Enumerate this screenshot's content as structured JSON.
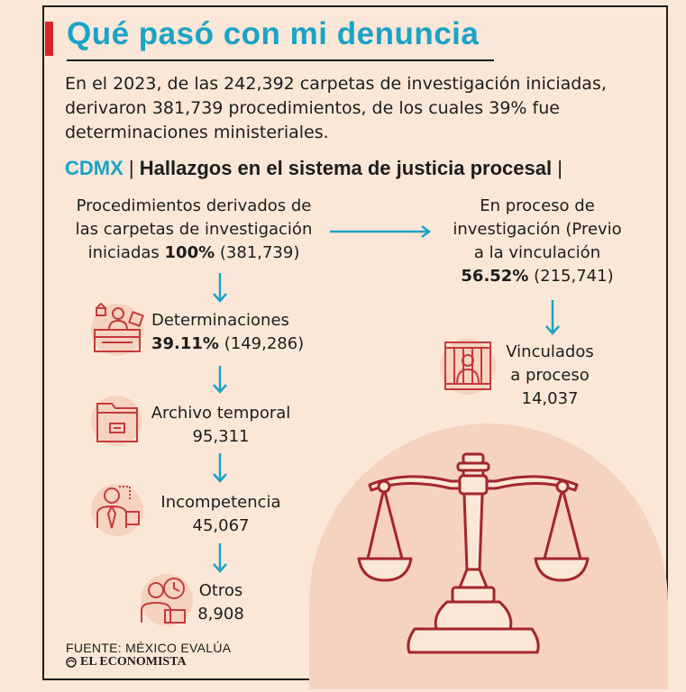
{
  "title": "Qué pasó con mi denuncia",
  "intro": "En el 2023, de las 242,392 carpetas de investigación iniciadas, derivaron 381,739 procedimientos, de los cuales 39% fue determinaciones ministeriales.",
  "subhead": {
    "place": "CDMX",
    "separator": "|",
    "heading": "Hallazgos en el sistema de justicia procesal",
    "trailing": "|"
  },
  "nodes": {
    "root": {
      "line1": "Procedimientos derivados de",
      "line2": "las carpetas de investigación",
      "line3_pre": "iniciadas ",
      "pct": "100%",
      "value": "(381,739)"
    },
    "proceso": {
      "line1": "En proceso de",
      "line2": "investigación (Previo",
      "line3": "a la vinculación",
      "pct": "56.52%",
      "value": "(215,741)"
    },
    "vinculados": {
      "line1": "Vinculados",
      "line2": "a proceso",
      "value": "14,037"
    },
    "determinaciones": {
      "label": "Determinaciones",
      "pct": "39.11%",
      "value": "(149,286)"
    },
    "archivo": {
      "label": "Archivo temporal",
      "value": "95,311"
    },
    "incompetencia": {
      "label": "Incompetencia",
      "value": "45,067"
    },
    "otros": {
      "label": "Otros",
      "value": "8,908"
    }
  },
  "icons": [
    "desk-worker-icon",
    "file-folder-icon",
    "thumbs-down-person-icon",
    "clock-person-icon",
    "jail-icon",
    "justice-scale-icon"
  ],
  "colors": {
    "accent": "#1aa3c6",
    "red": "#d8242f",
    "icon": "#c43b3b",
    "background": "#fbe7d8"
  },
  "footer": {
    "source": "FUENTE: MÉXICO EVALÚA",
    "brand": "EL ECONOMISTA"
  }
}
